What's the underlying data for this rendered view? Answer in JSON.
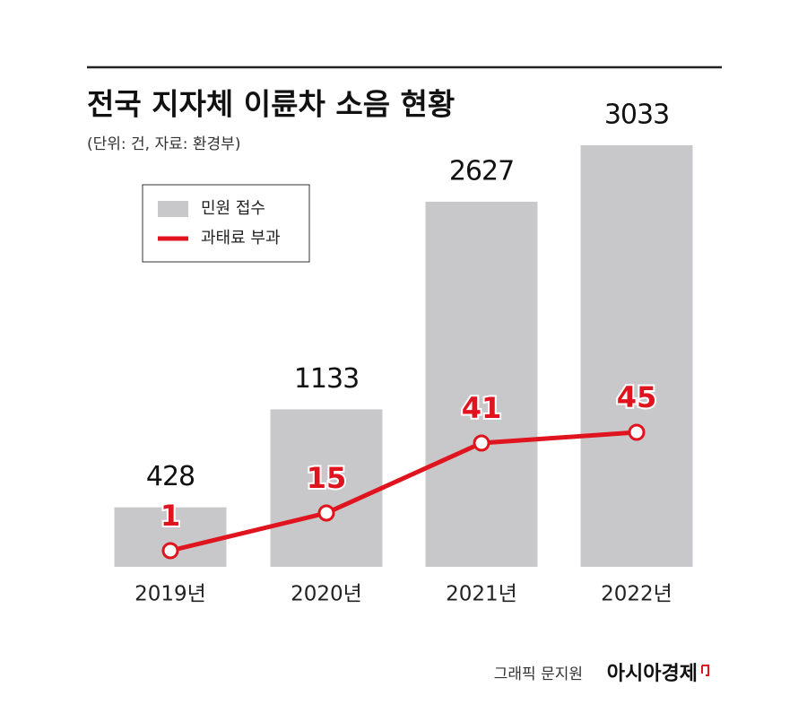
{
  "chart_data": {
    "type": "combo",
    "title": "전국 지자체 이륜차 소음 현황",
    "subtitle": "(단위: 건, 자료: 환경부)",
    "categories": [
      "2019년",
      "2020년",
      "2021년",
      "2022년"
    ],
    "series": [
      {
        "name": "민원 접수",
        "type": "bar",
        "color": "#c8c8ca",
        "values": [
          428,
          1133,
          2627,
          3033
        ]
      },
      {
        "name": "과태료 부과",
        "type": "line",
        "color": "#e0141e",
        "values": [
          1,
          15,
          41,
          45
        ]
      }
    ],
    "credit": "그래픽 문지원",
    "source": "아시아경제"
  }
}
